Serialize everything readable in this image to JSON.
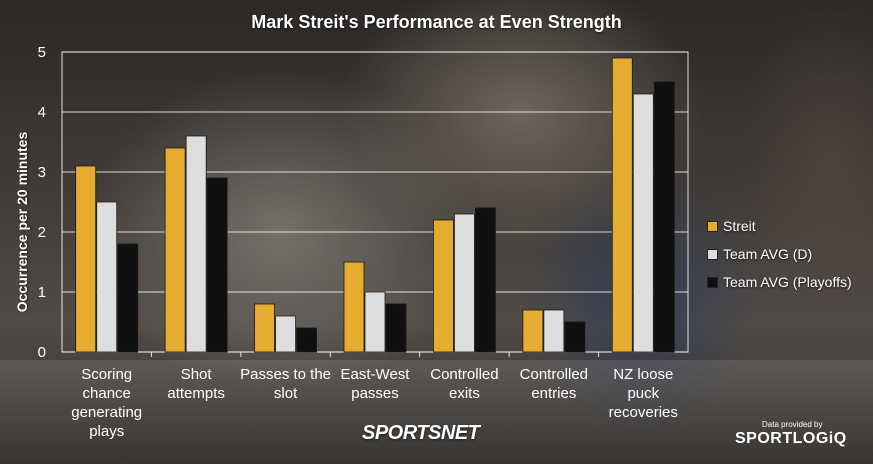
{
  "chart_data": {
    "type": "bar",
    "title": "Mark Streit's Performance at Even Strength",
    "xlabel": "",
    "ylabel": "Occurrence per 20 minutes",
    "ylim": [
      0,
      5
    ],
    "yticks": [
      0,
      1,
      2,
      3,
      4,
      5
    ],
    "grid": true,
    "legend_position": "right",
    "categories": [
      [
        "Scoring",
        "chance",
        "generating",
        "plays"
      ],
      [
        "Shot",
        "attempts"
      ],
      [
        "Passes to the",
        "slot"
      ],
      [
        "East-West",
        "passes"
      ],
      [
        "Controlled",
        "exits"
      ],
      [
        "Controlled",
        "entries"
      ],
      [
        "NZ loose",
        "puck",
        "recoveries"
      ]
    ],
    "series": [
      {
        "name": "Streit",
        "color": "#e5ac30",
        "values": [
          3.1,
          3.4,
          0.8,
          1.5,
          2.2,
          0.7,
          4.9
        ]
      },
      {
        "name": "Team AVG (D)",
        "color": "#dedede",
        "values": [
          2.5,
          3.6,
          0.6,
          1.0,
          2.3,
          0.7,
          4.3
        ]
      },
      {
        "name": "Team AVG (Playoffs)",
        "color": "#0f0f0f",
        "values": [
          1.8,
          2.9,
          0.4,
          0.8,
          2.4,
          0.5,
          4.5
        ]
      }
    ]
  },
  "branding": {
    "publisher": "SPORTSNET",
    "credit_prefix": "Data provided by",
    "data_provider": "SPORTLOGiQ"
  }
}
